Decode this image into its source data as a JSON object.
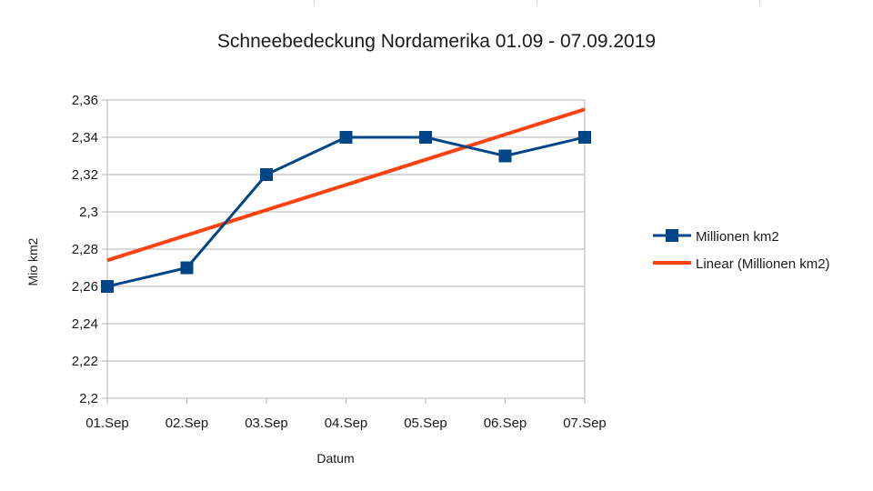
{
  "colors": {
    "series": "#004586",
    "trend": "#ff420e",
    "grid": "#b3b3b3",
    "axis": "#b3b3b3"
  },
  "chart_data": {
    "type": "line",
    "title": "Schneebedeckung Nordamerika 01.09 - 07.09.2019",
    "xlabel": "Datum",
    "ylabel": "Mio km2",
    "categories": [
      "01.Sep",
      "02.Sep",
      "03.Sep",
      "04.Sep",
      "05.Sep",
      "06.Sep",
      "07.Sep"
    ],
    "ylim": [
      2.2,
      2.36
    ],
    "ytick_step": 0.02,
    "ytick_labels": [
      "2,2",
      "2,22",
      "2,24",
      "2,26",
      "2,28",
      "2,3",
      "2,32",
      "2,34",
      "2,36"
    ],
    "grid": true,
    "legend_position": "right",
    "series": [
      {
        "name": "Millionen km2",
        "values": [
          2.26,
          2.27,
          2.32,
          2.34,
          2.34,
          2.33,
          2.34
        ],
        "marker": "square"
      }
    ],
    "trendline": {
      "name": "Linear (Millionen km2)",
      "type": "linear",
      "start": 2.274,
      "end": 2.355
    }
  }
}
